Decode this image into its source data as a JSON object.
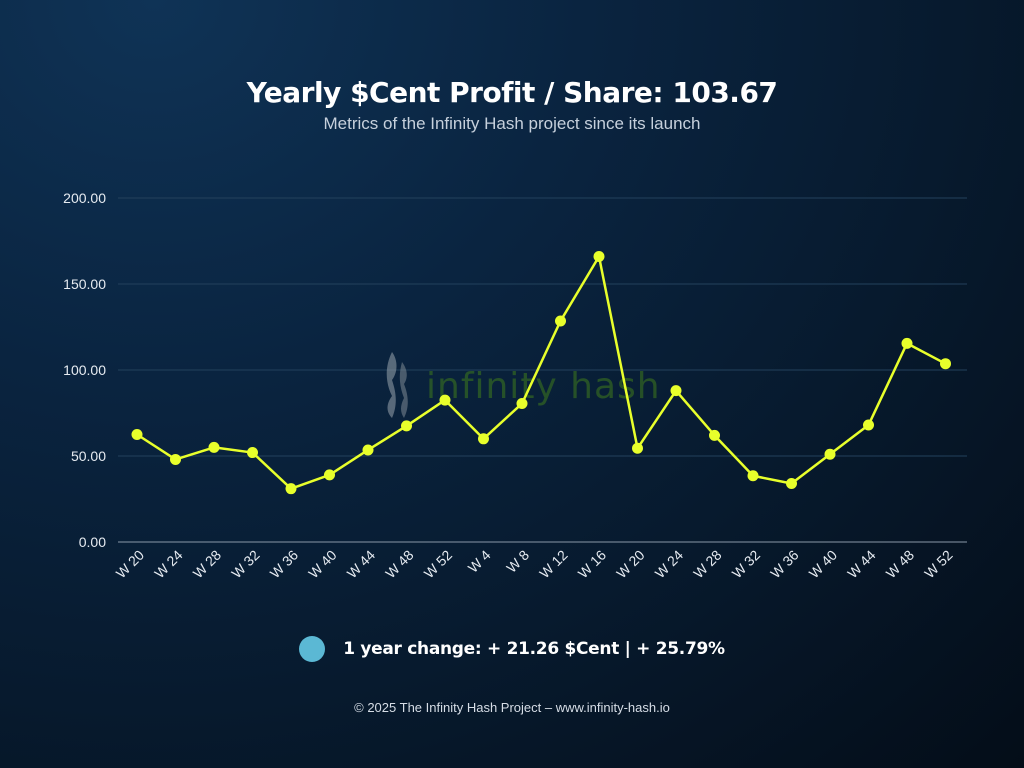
{
  "header": {
    "title": "Yearly $Cent Profit / Share: 103.67",
    "subtitle": "Metrics of the Infinity Hash project since its launch"
  },
  "watermark": {
    "text": "infinity hash",
    "color": "#3f7a1c"
  },
  "legend": {
    "text": "1 year change: + 21.26 $Cent | + 25.79%",
    "dot_color": "#5bb8d4"
  },
  "footer": {
    "text": "© 2025 The Infinity Hash Project – www.infinity-hash.io"
  },
  "chart_data": {
    "type": "line",
    "categories": [
      "W 20",
      "W 24",
      "W 28",
      "W 32",
      "W 36",
      "W 40",
      "W 44",
      "W 48",
      "W 52",
      "W 4",
      "W 8",
      "W 12",
      "W 16",
      "W 20",
      "W 24",
      "W 28",
      "W 32",
      "W 36",
      "W 40",
      "W 44",
      "W 48",
      "W 52"
    ],
    "series": [
      {
        "values": [
          62.5,
          48.0,
          55.0,
          52.0,
          31.0,
          39.0,
          53.5,
          67.5,
          82.5,
          60.0,
          80.5,
          128.5,
          166.0,
          54.5,
          88.0,
          62.0,
          38.5,
          34.0,
          51.0,
          68.0,
          115.5,
          103.67
        ],
        "color": "#e8ff2b"
      }
    ],
    "ylim": [
      0,
      200
    ],
    "yticks": [
      "0.00",
      "50.00",
      "100.00",
      "150.00",
      "200.00"
    ],
    "ytick_values": [
      0,
      50,
      100,
      150,
      200
    ],
    "grid": true,
    "grid_color": "#23415c",
    "legend_position": "bottom-center"
  }
}
